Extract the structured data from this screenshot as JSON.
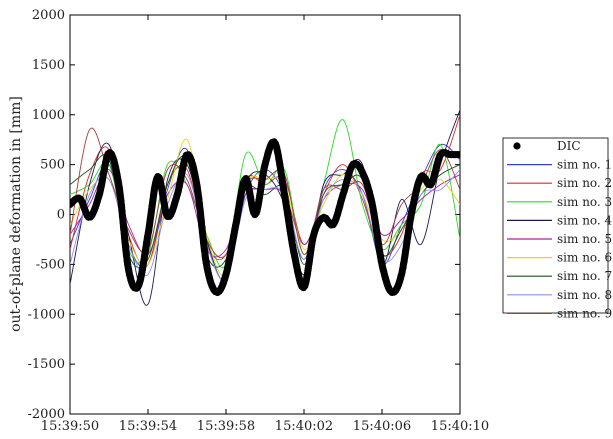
{
  "chart_data": {
    "type": "line",
    "title": "",
    "xlabel": "",
    "ylabel": "out-of-plane deformation in [mm]",
    "ylim": [
      -2000,
      2000
    ],
    "xlim": [
      "15:39:50",
      "15:40:10"
    ],
    "x_ticks": [
      "15:39:50",
      "15:39:54",
      "15:39:58",
      "15:40:02",
      "15:40:06",
      "15:40:10"
    ],
    "y_ticks": [
      2000,
      1500,
      1000,
      500,
      0,
      -500,
      -1000,
      -1500,
      -2000
    ],
    "grid": false,
    "legend_position": "right",
    "series": [
      {
        "name": "DIC",
        "style": "markers",
        "color": "#000000",
        "x": [
          0,
          0.5,
          1,
          1.5,
          2,
          2.5,
          3,
          3.5,
          4,
          4.5,
          5,
          5.5,
          6,
          6.5,
          7,
          7.5,
          8,
          8.5,
          9,
          9.5,
          10,
          10.5,
          11,
          11.5,
          12,
          12.5,
          13,
          13.5,
          14,
          14.5,
          15,
          15.5,
          16,
          16.5,
          17,
          17.5,
          18,
          18.5,
          19,
          19.5,
          20
        ],
        "y": [
          100,
          160,
          -30,
          200,
          620,
          300,
          -550,
          -720,
          -200,
          380,
          -20,
          200,
          600,
          300,
          -500,
          -780,
          -600,
          -100,
          360,
          0,
          500,
          720,
          200,
          -400,
          -730,
          -200,
          -30,
          -100,
          200,
          500,
          420,
          100,
          -500,
          -780,
          -600,
          0,
          380,
          300,
          600,
          600,
          600
        ]
      },
      {
        "name": "sim no. 1",
        "color": "#3344cc",
        "x": [
          0,
          1,
          2,
          3,
          4,
          5,
          6,
          7,
          8,
          9,
          10,
          11,
          12,
          13,
          14,
          15,
          16,
          17,
          18,
          19,
          20
        ],
        "y": [
          -300,
          150,
          500,
          -300,
          -500,
          250,
          650,
          -250,
          -650,
          200,
          450,
          200,
          -450,
          250,
          450,
          200,
          -500,
          -100,
          350,
          700,
          550
        ]
      },
      {
        "name": "sim no. 2",
        "color": "#d92b2b",
        "x": [
          0,
          1,
          2,
          3,
          4,
          5,
          6,
          7,
          8,
          9,
          10,
          11,
          12,
          13,
          14,
          15,
          16,
          17,
          18,
          19,
          20
        ],
        "y": [
          -350,
          400,
          650,
          -200,
          -500,
          300,
          450,
          -300,
          -400,
          350,
          300,
          350,
          -300,
          200,
          500,
          150,
          -400,
          -200,
          400,
          450,
          1000
        ]
      },
      {
        "name": "sim no. 3",
        "color": "#2bd92b",
        "x": [
          0,
          1,
          2,
          3,
          4,
          5,
          6,
          7,
          8,
          9,
          10,
          11,
          12,
          13,
          14,
          15,
          16,
          17,
          18,
          19,
          20
        ],
        "y": [
          200,
          300,
          500,
          -350,
          -400,
          500,
          300,
          -200,
          -500,
          600,
          300,
          450,
          -400,
          300,
          950,
          100,
          -350,
          -100,
          100,
          700,
          -250
        ]
      },
      {
        "name": "sim no. 4",
        "color": "#1a1a55",
        "x": [
          0,
          1,
          2,
          3,
          4,
          5,
          6,
          7,
          8,
          9,
          10,
          11,
          12,
          13,
          14,
          15,
          16,
          17,
          18,
          19,
          20
        ],
        "y": [
          -700,
          300,
          700,
          -200,
          -900,
          350,
          500,
          -250,
          -650,
          300,
          400,
          100,
          -600,
          300,
          400,
          500,
          -500,
          150,
          -300,
          500,
          1050
        ]
      },
      {
        "name": "sim no. 5",
        "color": "#aa22aa",
        "x": [
          0,
          1,
          2,
          3,
          4,
          5,
          6,
          7,
          8,
          9,
          10,
          11,
          12,
          13,
          14,
          15,
          16,
          17,
          18,
          19,
          20
        ],
        "y": [
          -200,
          100,
          450,
          -100,
          -400,
          200,
          300,
          -350,
          -350,
          200,
          250,
          200,
          -300,
          150,
          300,
          250,
          -200,
          -50,
          150,
          300,
          400
        ]
      },
      {
        "name": "sim no. 6",
        "color": "#e8d31a",
        "x": [
          0,
          1,
          2,
          3,
          4,
          5,
          6,
          7,
          8,
          9,
          10,
          11,
          12,
          13,
          14,
          15,
          16,
          17,
          18,
          19,
          20
        ],
        "y": [
          -100,
          250,
          350,
          -250,
          -500,
          150,
          750,
          -200,
          -600,
          300,
          350,
          300,
          -350,
          100,
          400,
          200,
          -250,
          -150,
          250,
          350,
          100
        ]
      },
      {
        "name": "sim no. 7",
        "color": "#155515",
        "x": [
          0,
          1,
          2,
          3,
          4,
          5,
          6,
          7,
          8,
          9,
          10,
          11,
          12,
          13,
          14,
          15,
          16,
          17,
          18,
          19,
          20
        ],
        "y": [
          300,
          450,
          550,
          -400,
          -450,
          300,
          550,
          -400,
          -450,
          250,
          200,
          250,
          -500,
          200,
          300,
          350,
          -400,
          -150,
          200,
          400,
          500
        ]
      },
      {
        "name": "sim no. 8",
        "color": "#9090ee",
        "x": [
          0,
          1,
          2,
          3,
          4,
          5,
          6,
          7,
          8,
          9,
          10,
          11,
          12,
          13,
          14,
          15,
          16,
          17,
          18,
          19,
          20
        ],
        "y": [
          -500,
          200,
          350,
          -300,
          -600,
          100,
          400,
          -300,
          -650,
          150,
          250,
          200,
          -450,
          150,
          350,
          200,
          -450,
          -300,
          200,
          250,
          450
        ]
      },
      {
        "name": "sim no. 9",
        "color": "#a04040",
        "x": [
          0,
          1,
          2,
          3,
          4,
          5,
          6,
          7,
          8,
          9,
          10,
          11,
          12,
          13,
          14,
          15,
          16,
          17,
          18,
          19,
          20
        ],
        "y": [
          -200,
          850,
          400,
          -150,
          -350,
          450,
          350,
          -250,
          -400,
          300,
          350,
          400,
          -400,
          250,
          250,
          300,
          -300,
          100,
          300,
          650,
          250
        ]
      }
    ]
  }
}
